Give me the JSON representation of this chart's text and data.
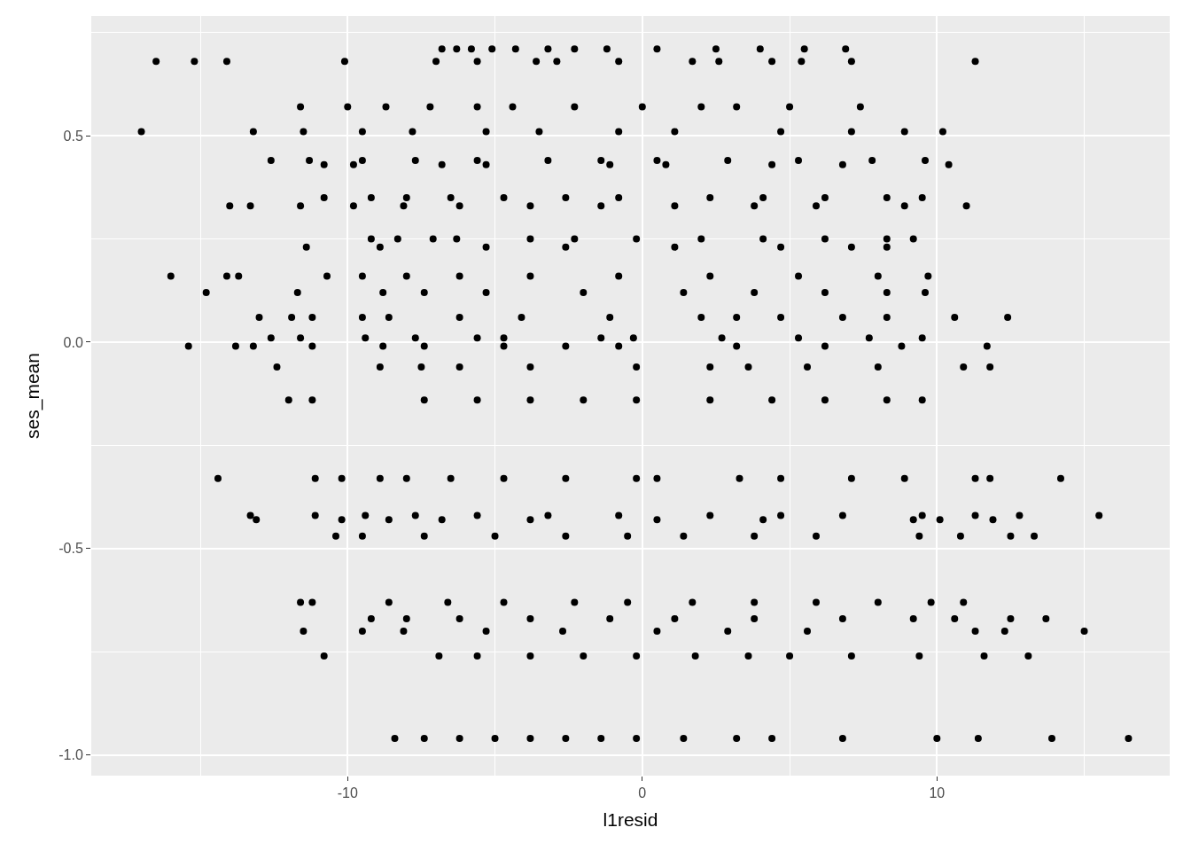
{
  "chart_data": {
    "type": "scatter",
    "xlabel": "l1resid",
    "ylabel": "ses_mean",
    "xlim": [
      -18.7,
      17.9
    ],
    "ylim": [
      -1.05,
      0.79
    ],
    "xticks": [
      -10,
      0,
      10
    ],
    "yticks": [
      {
        "value": -1.0,
        "label": "-1.0"
      },
      {
        "value": -0.5,
        "label": "-0.5"
      },
      {
        "value": 0.0,
        "label": "0.0"
      },
      {
        "value": 0.5,
        "label": "0.5"
      }
    ],
    "grid": true,
    "marker": "circle",
    "series": [
      {
        "color": "#000000",
        "x": [
          -6.8,
          -6.3,
          -5.8,
          -5.1,
          -4.3,
          -3.2,
          -2.3,
          -1.2,
          0.5,
          2.5,
          4.0,
          5.5,
          6.9
        ],
        "values": [
          0.71,
          0.71,
          0.71,
          0.71,
          0.71,
          0.71,
          0.71,
          0.71,
          0.71,
          0.71,
          0.71,
          0.71,
          0.71
        ]
      },
      {
        "color": "#000000",
        "x": [
          -16.5,
          -15.2,
          -14.1,
          -10.1,
          -7.0,
          -5.6,
          -3.6,
          -2.9,
          -0.8,
          1.7,
          2.6,
          4.4,
          5.4,
          7.1,
          11.3
        ],
        "values": [
          0.68,
          0.68,
          0.68,
          0.68,
          0.68,
          0.68,
          0.68,
          0.68,
          0.68,
          0.68,
          0.68,
          0.68,
          0.68,
          0.68,
          0.68
        ]
      },
      {
        "color": "#000000",
        "x": [
          -11.6,
          -10.0,
          -8.7,
          -7.2,
          -5.6,
          -4.4,
          -2.3,
          0,
          2.0,
          3.2,
          5.0,
          7.4
        ],
        "values": [
          0.57,
          0.57,
          0.57,
          0.57,
          0.57,
          0.57,
          0.57,
          0.57,
          0.57,
          0.57,
          0.57,
          0.57
        ]
      },
      {
        "color": "#000000",
        "x": [
          -17.0,
          -13.2,
          -11.5,
          -9.5,
          -7.8,
          -5.3,
          -3.5,
          -0.8,
          1.1,
          4.7,
          7.1,
          8.9,
          10.2
        ],
        "values": [
          0.51,
          0.51,
          0.51,
          0.51,
          0.51,
          0.51,
          0.51,
          0.51,
          0.51,
          0.51,
          0.51,
          0.51,
          0.51
        ]
      },
      {
        "color": "#000000",
        "x": [
          -12.6,
          -11.3,
          -9.5,
          -7.7,
          -5.6,
          -3.2,
          -1.4,
          0.5,
          2.9,
          5.3,
          7.8,
          9.6
        ],
        "values": [
          0.44,
          0.44,
          0.44,
          0.44,
          0.44,
          0.44,
          0.44,
          0.44,
          0.44,
          0.44,
          0.44,
          0.44
        ]
      },
      {
        "color": "#000000",
        "x": [
          -10.8,
          -9.8,
          -6.8,
          -5.3,
          -1.1,
          0.8,
          4.4,
          6.8,
          10.4
        ],
        "values": [
          0.43,
          0.43,
          0.43,
          0.43,
          0.43,
          0.43,
          0.43,
          0.43,
          0.43
        ]
      },
      {
        "color": "#000000",
        "x": [
          -10.8,
          -9.2,
          -8.0,
          -6.5,
          -4.7,
          -2.6,
          -0.8,
          2.3,
          4.1,
          6.2,
          8.3,
          9.5
        ],
        "values": [
          0.35,
          0.35,
          0.35,
          0.35,
          0.35,
          0.35,
          0.35,
          0.35,
          0.35,
          0.35,
          0.35,
          0.35
        ]
      },
      {
        "color": "#000000",
        "x": [
          -14.0,
          -13.3,
          -11.6,
          -9.8,
          -8.1,
          -6.2,
          -3.8,
          -1.4,
          1.1,
          3.8,
          5.9,
          8.9,
          11.0
        ],
        "values": [
          0.33,
          0.33,
          0.33,
          0.33,
          0.33,
          0.33,
          0.33,
          0.33,
          0.33,
          0.33,
          0.33,
          0.33,
          0.33
        ]
      },
      {
        "color": "#000000",
        "x": [
          -9.2,
          -8.3,
          -7.1,
          -6.3,
          -3.8,
          -2.3,
          -0.2,
          2.0,
          4.1,
          6.2,
          8.3,
          9.2
        ],
        "values": [
          0.25,
          0.25,
          0.25,
          0.25,
          0.25,
          0.25,
          0.25,
          0.25,
          0.25,
          0.25,
          0.25,
          0.25
        ]
      },
      {
        "color": "#000000",
        "x": [
          -11.4,
          -8.9,
          -5.3,
          -2.6,
          1.1,
          4.7,
          7.1,
          8.3
        ],
        "values": [
          0.23,
          0.23,
          0.23,
          0.23,
          0.23,
          0.23,
          0.23,
          0.23
        ]
      },
      {
        "color": "#000000",
        "x": [
          -16.0,
          -14.1,
          -13.7,
          -10.7,
          -9.5,
          -8.0,
          -6.2,
          -3.8,
          -0.8,
          2.3,
          5.3,
          8.0,
          9.7
        ],
        "values": [
          0.16,
          0.16,
          0.16,
          0.16,
          0.16,
          0.16,
          0.16,
          0.16,
          0.16,
          0.16,
          0.16,
          0.16,
          0.16
        ]
      },
      {
        "color": "#000000",
        "x": [
          -14.8,
          -11.7,
          -8.8,
          -7.4,
          -5.3,
          -2.0,
          1.4,
          3.8,
          6.2,
          8.3,
          9.6
        ],
        "values": [
          0.12,
          0.12,
          0.12,
          0.12,
          0.12,
          0.12,
          0.12,
          0.12,
          0.12,
          0.12,
          0.12
        ]
      },
      {
        "color": "#000000",
        "x": [
          -13.0,
          -11.9,
          -11.2,
          -9.5,
          -8.6,
          -6.2,
          -4.1,
          -1.1,
          2.0,
          3.2,
          4.7,
          6.8,
          8.3,
          10.6,
          12.4
        ],
        "values": [
          0.06,
          0.06,
          0.06,
          0.06,
          0.06,
          0.06,
          0.06,
          0.06,
          0.06,
          0.06,
          0.06,
          0.06,
          0.06,
          0.06,
          0.06
        ]
      },
      {
        "color": "#000000",
        "x": [
          -12.6,
          -11.6,
          -9.4,
          -7.7,
          -5.6,
          -4.7,
          -1.4,
          -0.3,
          2.7,
          5.3,
          7.7,
          9.5
        ],
        "values": [
          0.01,
          0.01,
          0.01,
          0.01,
          0.01,
          0.01,
          0.01,
          0.01,
          0.01,
          0.01,
          0.01,
          0.01
        ]
      },
      {
        "color": "#000000",
        "x": [
          -15.4,
          -13.8,
          -13.2,
          -11.2,
          -8.8,
          -7.4,
          -4.7,
          -2.6,
          -0.8,
          3.2,
          6.2,
          8.8,
          11.7
        ],
        "values": [
          -0.01,
          -0.01,
          -0.01,
          -0.01,
          -0.01,
          -0.01,
          -0.01,
          -0.01,
          -0.01,
          -0.01,
          -0.01,
          -0.01,
          -0.01
        ]
      },
      {
        "color": "#000000",
        "x": [
          -12.4,
          -8.9,
          -7.5,
          -6.2,
          -3.8,
          -0.2,
          2.3,
          3.6,
          5.6,
          8.0,
          10.9,
          11.8
        ],
        "values": [
          -0.06,
          -0.06,
          -0.06,
          -0.06,
          -0.06,
          -0.06,
          -0.06,
          -0.06,
          -0.06,
          -0.06,
          -0.06,
          -0.06
        ]
      },
      {
        "color": "#000000",
        "x": [
          -12.0,
          -11.2,
          -7.4,
          -5.6,
          -3.8,
          -2.0,
          -0.2,
          2.3,
          4.4,
          6.2,
          8.3,
          9.5
        ],
        "values": [
          -0.14,
          -0.14,
          -0.14,
          -0.14,
          -0.14,
          -0.14,
          -0.14,
          -0.14,
          -0.14,
          -0.14,
          -0.14,
          -0.14
        ]
      },
      {
        "color": "#000000",
        "x": [
          -14.4,
          -11.1,
          -10.2,
          -8.9,
          -8.0,
          -6.5,
          -4.7,
          -2.6,
          -0.2,
          0.5,
          3.3,
          4.7,
          7.1,
          8.9,
          11.3,
          11.8,
          14.2
        ],
        "values": [
          -0.33,
          -0.33,
          -0.33,
          -0.33,
          -0.33,
          -0.33,
          -0.33,
          -0.33,
          -0.33,
          -0.33,
          -0.33,
          -0.33,
          -0.33,
          -0.33,
          -0.33,
          -0.33,
          -0.33
        ]
      },
      {
        "color": "#000000",
        "x": [
          -13.3,
          -11.1,
          -9.4,
          -7.7,
          -5.6,
          -3.2,
          -0.8,
          2.3,
          4.7,
          6.8,
          9.5,
          11.3,
          12.8,
          15.5
        ],
        "values": [
          -0.42,
          -0.42,
          -0.42,
          -0.42,
          -0.42,
          -0.42,
          -0.42,
          -0.42,
          -0.42,
          -0.42,
          -0.42,
          -0.42,
          -0.42,
          -0.42
        ]
      },
      {
        "color": "#000000",
        "x": [
          -13.1,
          -10.2,
          -8.6,
          -6.8,
          -3.8,
          0.5,
          4.1,
          9.2,
          10.1,
          11.9
        ],
        "values": [
          -0.43,
          -0.43,
          -0.43,
          -0.43,
          -0.43,
          -0.43,
          -0.43,
          -0.43,
          -0.43,
          -0.43
        ]
      },
      {
        "color": "#000000",
        "x": [
          -10.4,
          -9.5,
          -7.4,
          -5.0,
          -2.6,
          -0.5,
          1.4,
          3.8,
          5.9,
          9.4,
          10.8,
          12.5,
          13.3
        ],
        "values": [
          -0.47,
          -0.47,
          -0.47,
          -0.47,
          -0.47,
          -0.47,
          -0.47,
          -0.47,
          -0.47,
          -0.47,
          -0.47,
          -0.47,
          -0.47
        ]
      },
      {
        "color": "#000000",
        "x": [
          -11.6,
          -11.2,
          -8.6,
          -6.6,
          -4.7,
          -2.3,
          -0.5,
          1.7,
          3.8,
          5.9,
          8.0,
          9.8,
          10.9
        ],
        "values": [
          -0.63,
          -0.63,
          -0.63,
          -0.63,
          -0.63,
          -0.63,
          -0.63,
          -0.63,
          -0.63,
          -0.63,
          -0.63,
          -0.63,
          -0.63
        ]
      },
      {
        "color": "#000000",
        "x": [
          -9.2,
          -8.0,
          -6.2,
          -3.8,
          -1.1,
          1.1,
          3.8,
          6.8,
          9.2,
          10.6,
          12.5,
          13.7
        ],
        "values": [
          -0.67,
          -0.67,
          -0.67,
          -0.67,
          -0.67,
          -0.67,
          -0.67,
          -0.67,
          -0.67,
          -0.67,
          -0.67,
          -0.67
        ]
      },
      {
        "color": "#000000",
        "x": [
          -11.5,
          -9.5,
          -8.1,
          -5.3,
          -2.7,
          0.5,
          2.9,
          5.6,
          11.3,
          12.3,
          15.0
        ],
        "values": [
          -0.7,
          -0.7,
          -0.7,
          -0.7,
          -0.7,
          -0.7,
          -0.7,
          -0.7,
          -0.7,
          -0.7,
          -0.7
        ]
      },
      {
        "color": "#000000",
        "x": [
          -10.8,
          -6.9,
          -5.6,
          -3.8,
          -2.0,
          -0.2,
          1.8,
          3.6,
          5.0,
          7.1,
          9.4,
          11.6,
          13.1
        ],
        "values": [
          -0.76,
          -0.76,
          -0.76,
          -0.76,
          -0.76,
          -0.76,
          -0.76,
          -0.76,
          -0.76,
          -0.76,
          -0.76,
          -0.76,
          -0.76
        ]
      },
      {
        "color": "#000000",
        "x": [
          -8.4,
          -7.4,
          -6.2,
          -5.0,
          -3.8,
          -2.6,
          -1.4,
          -0.2,
          1.4,
          3.2,
          4.4,
          6.8,
          10.0,
          11.4,
          13.9,
          16.5
        ],
        "values": [
          -0.96,
          -0.96,
          -0.96,
          -0.96,
          -0.96,
          -0.96,
          -0.96,
          -0.96,
          -0.96,
          -0.96,
          -0.96,
          -0.96,
          -0.96,
          -0.96,
          -0.96,
          -0.96
        ]
      }
    ]
  }
}
